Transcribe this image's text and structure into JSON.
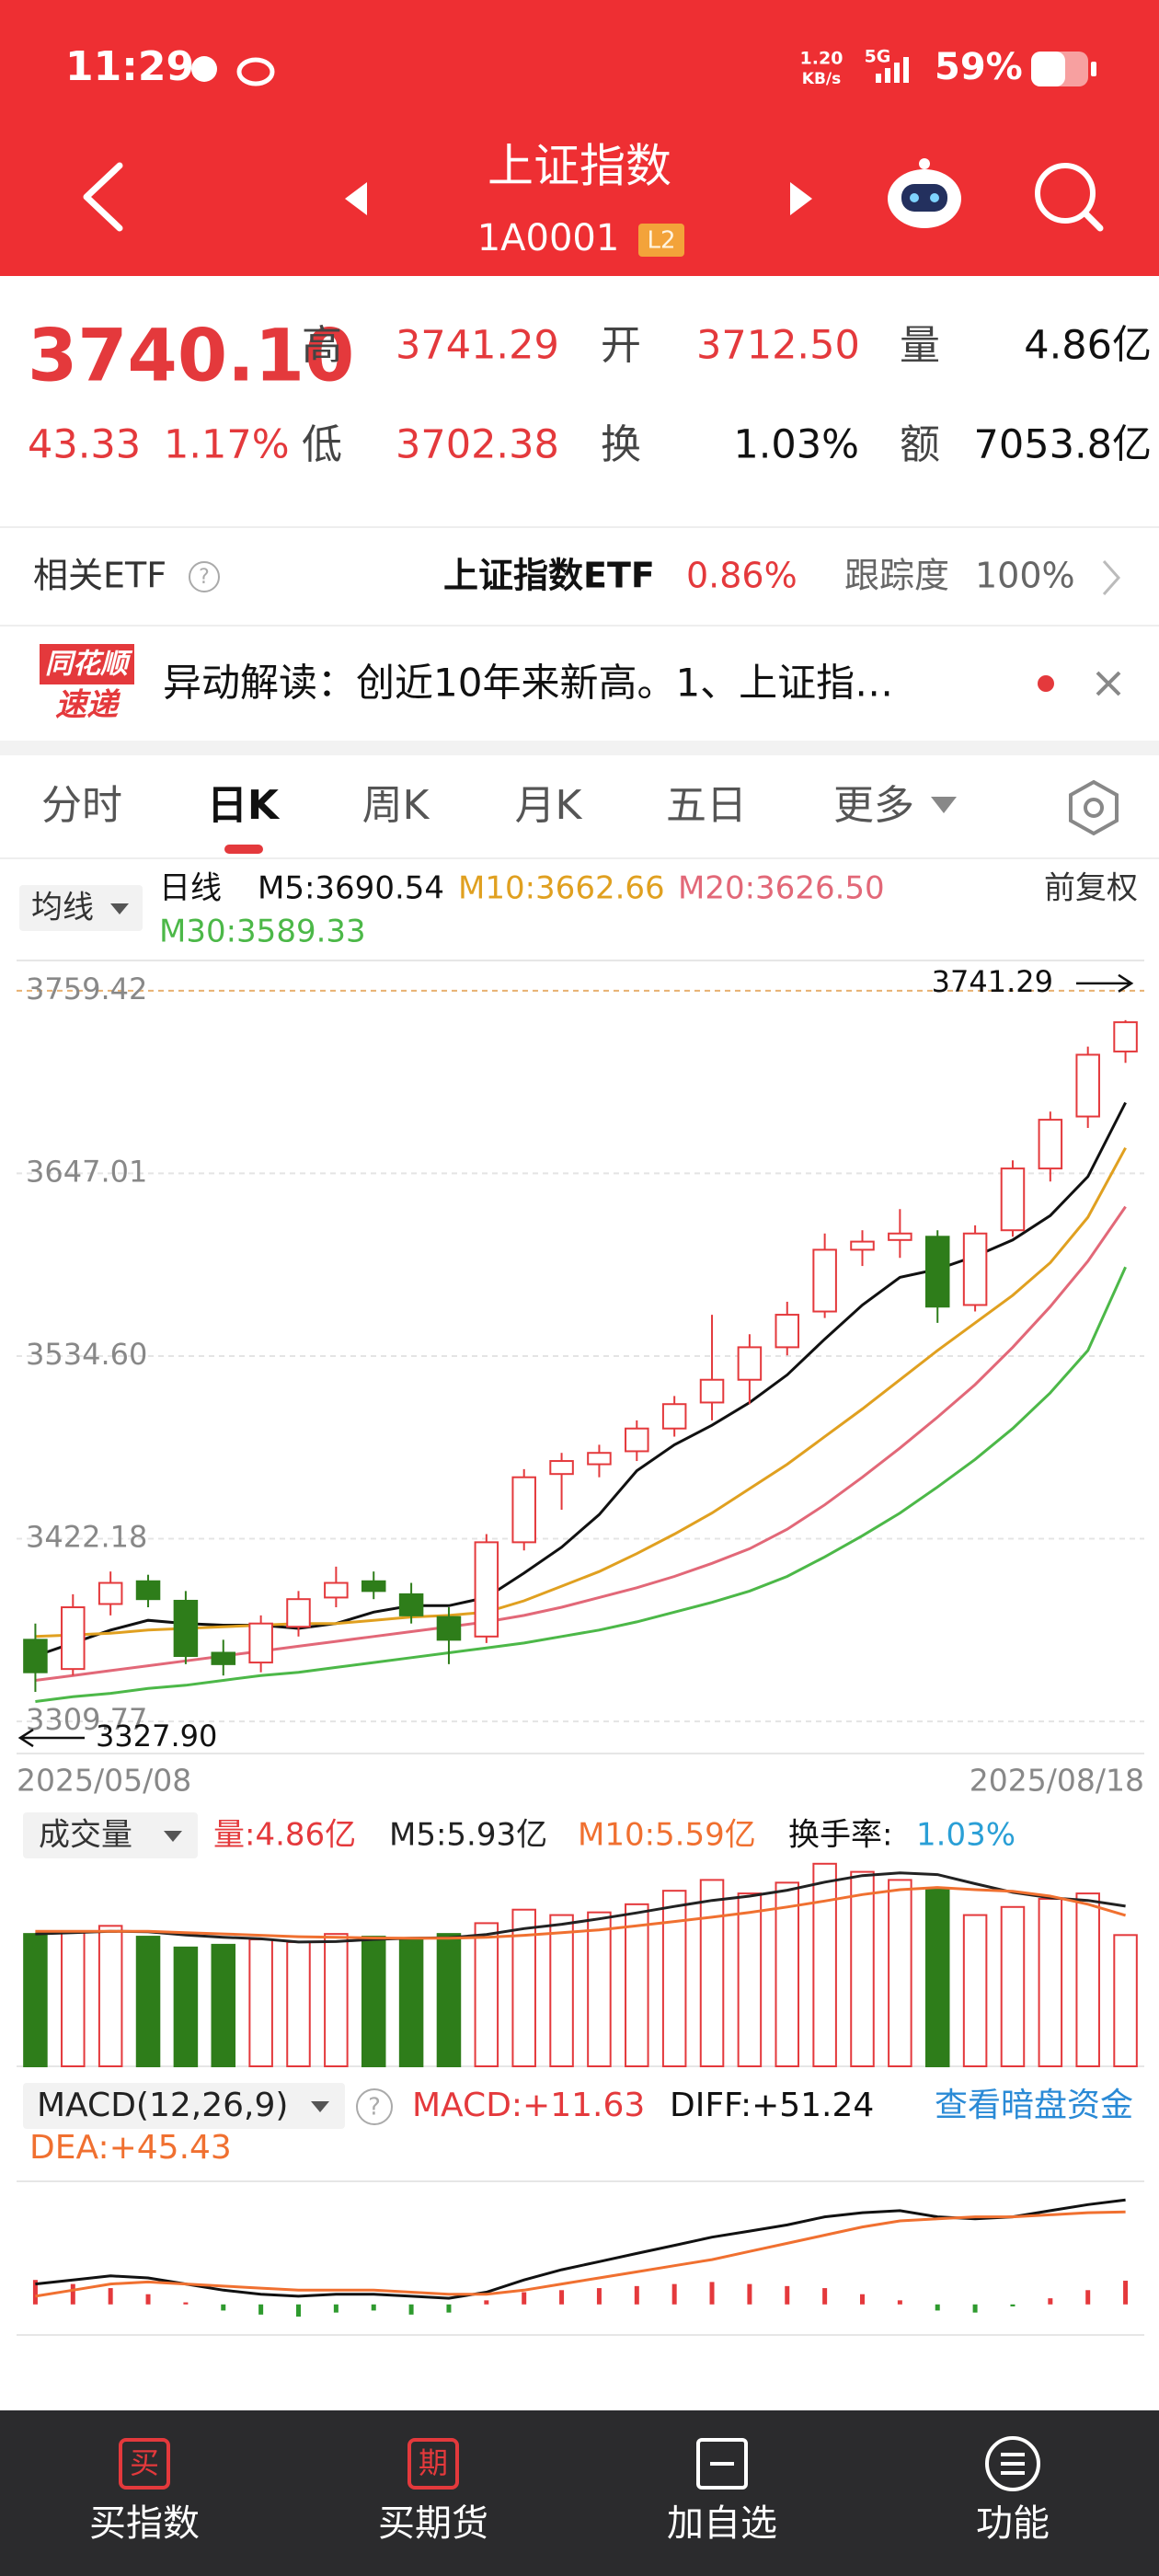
{
  "status_bar": {
    "time": "11:29",
    "speed": "1.20",
    "speed_unit": "KB/s",
    "network": "5G",
    "battery": "59%"
  },
  "header": {
    "title": "上证指数",
    "code": "1A0001",
    "badge": "L2"
  },
  "quote": {
    "price": "3740.10",
    "change": "43.33",
    "change_pct": "1.17%",
    "fields": [
      {
        "label": "高",
        "value": "3741.29"
      },
      {
        "label": "开",
        "value": "3712.50"
      },
      {
        "label": "量",
        "value": "4.86亿"
      },
      {
        "label": "低",
        "value": "3702.38"
      },
      {
        "label": "换",
        "value": "1.03%"
      },
      {
        "label": "额",
        "value": "7053.8亿"
      }
    ]
  },
  "etf": {
    "label": "相关ETF",
    "help": "?",
    "name": "上证指数ETF",
    "pct": "0.86%",
    "track_label": "跟踪度",
    "track": "100%"
  },
  "news": {
    "logo_top": "同花顺",
    "logo_bottom": "速递",
    "text": "异动解读：创近10年来新高。1、上证指…"
  },
  "tabs": [
    "分时",
    "日K",
    "周K",
    "月K",
    "五日",
    "更多"
  ],
  "legend": {
    "ma_button": "均线",
    "period": "日线",
    "adjust": "前复权"
  },
  "chart_data": [
    {
      "type": "candlestick",
      "categories": [
        "2025/05/08",
        null,
        null,
        null,
        null,
        null,
        null,
        null,
        null,
        null,
        null,
        null,
        null,
        null,
        null,
        null,
        null,
        null,
        null,
        null,
        null,
        null,
        null,
        null,
        null,
        null,
        null,
        null,
        null,
        "2025/08/18"
      ],
      "open": [
        3360,
        3342,
        3382,
        3396,
        3384,
        3352,
        3346,
        3368,
        3386,
        3396,
        3388,
        3374,
        3362,
        3420,
        3462,
        3468,
        3476,
        3490,
        3506,
        3520,
        3540,
        3562,
        3600,
        3606,
        3608,
        3566,
        3612,
        3650,
        3682,
        3722
      ],
      "high": [
        3370,
        3388,
        3402,
        3400,
        3390,
        3360,
        3375,
        3390,
        3405,
        3402,
        3395,
        3380,
        3425,
        3465,
        3475,
        3480,
        3495,
        3510,
        3560,
        3548,
        3568,
        3610,
        3612,
        3625,
        3612,
        3615,
        3655,
        3685,
        3725,
        3741.29
      ],
      "low": [
        3327.9,
        3338,
        3375,
        3380,
        3345,
        3338,
        3340,
        3362,
        3380,
        3385,
        3370,
        3345,
        3358,
        3415,
        3440,
        3460,
        3470,
        3485,
        3495,
        3505,
        3535,
        3558,
        3590,
        3595,
        3555,
        3562,
        3608,
        3642,
        3675,
        3715
      ],
      "close": [
        3340,
        3380,
        3395,
        3385,
        3350,
        3345,
        3370,
        3385,
        3395,
        3390,
        3375,
        3360,
        3420,
        3460,
        3470,
        3475,
        3490,
        3505,
        3520,
        3540,
        3560,
        3600,
        3605,
        3610,
        3565,
        3610,
        3650,
        3680,
        3720,
        3740
      ],
      "up_color": "#e4393c",
      "down_color": "#2e7d1a",
      "ylim": [
        3290,
        3778
      ],
      "yticks": [
        3309.77,
        3422.18,
        {
          "value": 3534.6,
          "label": "3534.60"
        },
        3647.01,
        3759.42
      ],
      "series": [
        {
          "name": "M5:3690.54",
          "color": "#111111",
          "values": [
            3350,
            3358,
            3366,
            3372,
            3370,
            3369,
            3369,
            3367,
            3370,
            3377,
            3381,
            3381,
            3386,
            3401,
            3417,
            3437,
            3464,
            3480,
            3492,
            3506,
            3523,
            3545,
            3566,
            3583,
            3588,
            3596,
            3606,
            3621,
            3645,
            3690.54
          ]
        },
        {
          "name": "M10:3662.66",
          "color": "#e0a020",
          "values": [
            3362,
            3363,
            3364,
            3366,
            3367,
            3368,
            3369,
            3370,
            3370,
            3372,
            3374,
            3375,
            3377,
            3384,
            3393,
            3402,
            3413,
            3425,
            3438,
            3453,
            3468,
            3485,
            3502,
            3520,
            3538,
            3555,
            3572,
            3592,
            3620,
            3662.66
          ]
        },
        {
          "name": "M20:3626.50",
          "color": "#e26878",
          "values": [
            3335,
            3338,
            3341,
            3344,
            3347,
            3350,
            3353,
            3356,
            3359,
            3362,
            3365,
            3368,
            3371,
            3375,
            3380,
            3386,
            3392,
            3399,
            3407,
            3416,
            3428,
            3443,
            3460,
            3478,
            3497,
            3517,
            3540,
            3565,
            3593,
            3626.5
          ]
        },
        {
          "name": "M30:3589.33",
          "color": "#4cb848",
          "values": [
            3322,
            3325,
            3327,
            3330,
            3332,
            3335,
            3338,
            3340,
            3343,
            3346,
            3349,
            3352,
            3355,
            3358,
            3362,
            3366,
            3371,
            3377,
            3383,
            3390,
            3399,
            3411,
            3424,
            3438,
            3454,
            3471,
            3490,
            3512,
            3538,
            3589.33
          ]
        }
      ],
      "annotations": [
        {
          "value": 3741.29,
          "label": "3741.29"
        },
        {
          "value": 3327.9,
          "label": "3327.90"
        }
      ]
    },
    {
      "type": "volume",
      "title": "成交量",
      "current": "量:4.86亿",
      "turnover_label": "换手率:",
      "turnover": "1.03%",
      "values": [
        4.9,
        5.0,
        5.2,
        4.8,
        4.4,
        4.5,
        4.7,
        4.6,
        4.9,
        4.8,
        4.7,
        4.9,
        5.3,
        5.8,
        5.6,
        5.7,
        6.0,
        6.5,
        6.9,
        6.4,
        6.8,
        7.5,
        7.2,
        6.9,
        6.6,
        5.6,
        5.9,
        6.2,
        6.4,
        4.86
      ],
      "ylim": [
        0,
        7.8
      ],
      "series": [
        {
          "name": "M5:5.93亿",
          "color": "#222222",
          "values": [
            4.9,
            4.95,
            5.0,
            4.98,
            4.86,
            4.78,
            4.72,
            4.6,
            4.62,
            4.7,
            4.74,
            4.76,
            4.88,
            5.1,
            5.26,
            5.46,
            5.68,
            5.92,
            6.14,
            6.3,
            6.52,
            6.82,
            7.06,
            7.16,
            7.1,
            6.76,
            6.44,
            6.24,
            6.14,
            5.93
          ]
        },
        {
          "name": "M10:5.59亿",
          "color": "#f07030",
          "values": [
            5.0,
            5.0,
            5.0,
            5.0,
            4.95,
            4.9,
            4.85,
            4.8,
            4.78,
            4.75,
            4.74,
            4.74,
            4.78,
            4.85,
            4.95,
            5.05,
            5.2,
            5.36,
            5.52,
            5.7,
            5.9,
            6.12,
            6.36,
            6.54,
            6.62,
            6.54,
            6.48,
            6.3,
            6.0,
            5.59
          ]
        }
      ]
    },
    {
      "type": "macd",
      "title": "MACD(12,26,9)",
      "help": "?",
      "value_label": "MACD:+11.63",
      "link": "查看暗盘资金",
      "values": [
        12,
        10,
        8,
        5,
        1,
        -3,
        -5,
        -6,
        -4,
        -3,
        -5,
        -4,
        2,
        6,
        7,
        8,
        9,
        10,
        11,
        10,
        9,
        8,
        5,
        2,
        -3,
        -4,
        -1,
        3,
        7,
        11.63
      ],
      "up_color": "#e4393c",
      "down_color": "#2e9a2e",
      "ylim": [
        -15,
        55
      ],
      "series": [
        {
          "name": "DIFF:+51.24",
          "color": "#111111",
          "values": [
            10,
            12,
            14,
            13,
            10,
            7,
            5,
            4,
            5,
            5,
            4,
            3,
            6,
            12,
            17,
            21,
            25,
            29,
            33,
            36,
            39,
            43,
            45,
            46,
            43,
            42,
            43,
            46,
            49,
            51.24
          ]
        },
        {
          "name": "DEA:+45.43",
          "color": "#f07030",
          "values": [
            4,
            7,
            10,
            11,
            10,
            9,
            8,
            7,
            7,
            7,
            6,
            5,
            5,
            7,
            10,
            13,
            16,
            19,
            22,
            26,
            30,
            34,
            38,
            41,
            42,
            43,
            43,
            44,
            45,
            45.43
          ]
        }
      ]
    }
  ],
  "nav": [
    {
      "icon": "买",
      "label": "买指数"
    },
    {
      "icon": "期",
      "label": "买期货"
    },
    {
      "label": "加自选"
    },
    {
      "label": "功能"
    }
  ]
}
